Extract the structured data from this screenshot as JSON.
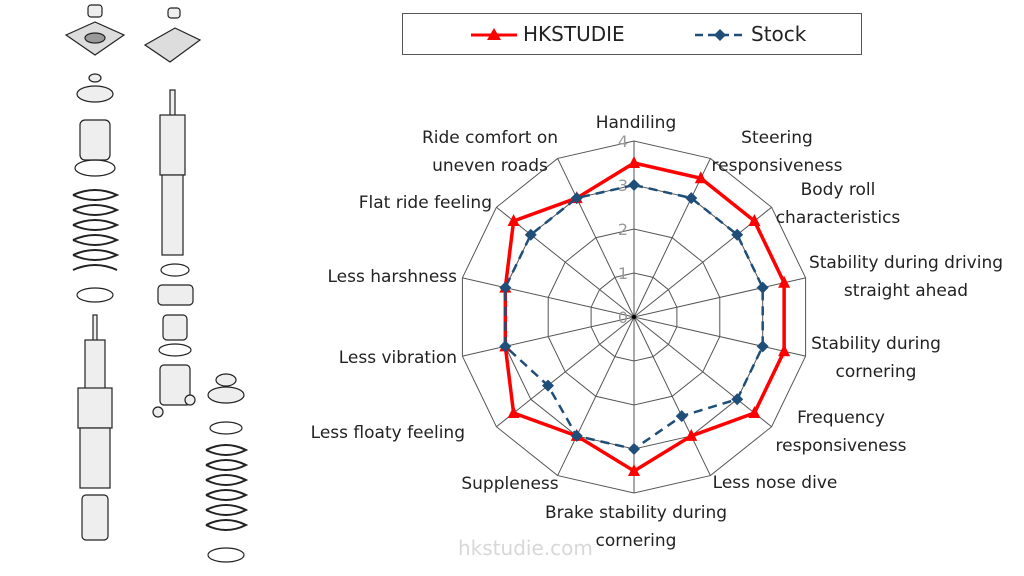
{
  "chart_data": {
    "type": "radar",
    "title": "",
    "categories": [
      [
        "Handiling"
      ],
      [
        "Steering",
        "responsiveness"
      ],
      [
        "Body roll",
        "characteristics"
      ],
      [
        "Stability during driving",
        "straight ahead"
      ],
      [
        "Stability during",
        "cornering"
      ],
      [
        "Frequency",
        "responsiveness"
      ],
      [
        "Less nose dive"
      ],
      [
        "Brake stability during",
        "cornering"
      ],
      [
        "Suppleness"
      ],
      [
        "Less floaty feeling"
      ],
      [
        "Less vibration"
      ],
      [
        "Less harshness"
      ],
      [
        "Flat ride feeling"
      ],
      [
        "Ride comfort on",
        "uneven roads"
      ]
    ],
    "series": [
      {
        "name": "HKSTUDIE",
        "color": "#ff0000",
        "marker": "triangle",
        "line": "solid",
        "values": [
          3.5,
          3.5,
          3.5,
          3.5,
          3.5,
          3.5,
          3.0,
          3.5,
          3.0,
          3.5,
          3.0,
          3.0,
          3.5,
          3.0
        ]
      },
      {
        "name": "Stock",
        "color": "#1f4e79",
        "marker": "diamond",
        "line": "dashed",
        "values": [
          3.0,
          3.0,
          3.0,
          3.0,
          3.0,
          3.0,
          2.5,
          3.0,
          3.0,
          2.5,
          3.0,
          3.0,
          3.0,
          3.0
        ]
      }
    ],
    "rlim": [
      0,
      4
    ],
    "ticks": [
      "0",
      "1",
      "2",
      "3",
      "4"
    ],
    "grid": true,
    "legend": "top"
  },
  "watermark": "hkstudie.com"
}
